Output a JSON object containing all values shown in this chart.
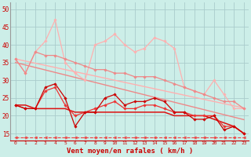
{
  "background_color": "#cceee8",
  "grid_color": "#aacccc",
  "xlabel": "Vent moyen/en rafales ( km/h )",
  "xlabel_color": "#cc0000",
  "ylabel_color": "#cc0000",
  "xlim": [
    -0.5,
    23.5
  ],
  "ylim": [
    13,
    52
  ],
  "yticks": [
    15,
    20,
    25,
    30,
    35,
    40,
    45,
    50
  ],
  "xticks": [
    0,
    1,
    2,
    3,
    4,
    5,
    6,
    7,
    8,
    9,
    10,
    11,
    12,
    13,
    14,
    15,
    16,
    17,
    18,
    19,
    20,
    21,
    22,
    23
  ],
  "series": [
    {
      "x": [
        0,
        1,
        2,
        3,
        4,
        5,
        6,
        7,
        8,
        9,
        10,
        11,
        12,
        13,
        14,
        15,
        16,
        17,
        18,
        19,
        20,
        21,
        22,
        23
      ],
      "y": [
        36,
        32,
        38,
        41,
        47,
        35,
        32,
        30,
        40,
        41,
        43,
        40,
        38,
        39,
        42,
        41,
        39,
        28,
        27,
        26,
        30,
        26,
        22,
        22
      ],
      "color": "#ffb0b0",
      "linewidth": 0.9,
      "marker": "D",
      "markersize": 1.8,
      "linestyle": "-",
      "zorder": 3
    },
    {
      "x": [
        0,
        1,
        2,
        3,
        4,
        5,
        6,
        7,
        8,
        9,
        10,
        11,
        12,
        13,
        14,
        15,
        16,
        17,
        18,
        19,
        20,
        21,
        22,
        23
      ],
      "y": [
        36,
        35.4,
        34.8,
        34.2,
        33.6,
        33,
        32.4,
        31.8,
        31.2,
        30.6,
        30,
        29.4,
        28.8,
        28.2,
        27.6,
        27,
        26.4,
        25.8,
        25.2,
        24.6,
        24,
        23.4,
        22.8,
        22.2
      ],
      "color": "#ffb0b0",
      "linewidth": 1.0,
      "marker": null,
      "markersize": 0,
      "linestyle": "-",
      "zorder": 2
    },
    {
      "x": [
        0,
        1,
        2,
        3,
        4,
        5,
        6,
        7,
        8,
        9,
        10,
        11,
        12,
        13,
        14,
        15,
        16,
        17,
        18,
        19,
        20,
        21,
        22,
        23
      ],
      "y": [
        36,
        32,
        38,
        37,
        37,
        36,
        35,
        34,
        33,
        33,
        32,
        32,
        31,
        31,
        31,
        30,
        29,
        28,
        27,
        26,
        25,
        24,
        24,
        22
      ],
      "color": "#ee8888",
      "linewidth": 0.9,
      "marker": "D",
      "markersize": 1.8,
      "linestyle": "-",
      "zorder": 3
    },
    {
      "x": [
        0,
        1,
        2,
        3,
        4,
        5,
        6,
        7,
        8,
        9,
        10,
        11,
        12,
        13,
        14,
        15,
        16,
        17,
        18,
        19,
        20,
        21,
        22,
        23
      ],
      "y": [
        35,
        34.3,
        33.6,
        32.9,
        32.2,
        31.5,
        30.8,
        30.1,
        29.4,
        28.7,
        28,
        27.3,
        26.6,
        25.9,
        25.2,
        24.5,
        23.8,
        23.1,
        22.4,
        21.7,
        21,
        20.3,
        19.6,
        18.9
      ],
      "color": "#ee8888",
      "linewidth": 1.0,
      "marker": null,
      "markersize": 0,
      "linestyle": "-",
      "zorder": 2
    },
    {
      "x": [
        0,
        1,
        2,
        3,
        4,
        5,
        6,
        7,
        8,
        9,
        10,
        11,
        12,
        13,
        14,
        15,
        16,
        17,
        18,
        19,
        20,
        21,
        22,
        23
      ],
      "y": [
        23,
        22,
        22,
        28,
        29,
        25,
        17,
        21,
        21,
        25,
        26,
        23,
        24,
        24,
        25,
        24,
        21,
        21,
        19,
        19,
        20,
        16,
        17,
        15
      ],
      "color": "#cc0000",
      "linewidth": 0.9,
      "marker": "D",
      "markersize": 1.8,
      "linestyle": "-",
      "zorder": 5
    },
    {
      "x": [
        0,
        1,
        2,
        3,
        4,
        5,
        6,
        7,
        8,
        9,
        10,
        11,
        12,
        13,
        14,
        15,
        16,
        17,
        18,
        19,
        20,
        21,
        22,
        23
      ],
      "y": [
        23,
        22,
        22,
        27,
        28,
        23,
        20,
        21,
        22,
        23,
        24,
        22,
        22,
        23,
        23,
        22,
        21,
        21,
        20,
        20,
        20,
        17,
        17,
        15
      ],
      "color": "#ee3333",
      "linewidth": 0.9,
      "marker": "D",
      "markersize": 1.8,
      "linestyle": "-",
      "zorder": 4
    },
    {
      "x": [
        0,
        1,
        2,
        3,
        4,
        5,
        6,
        7,
        8,
        9,
        10,
        11,
        12,
        13,
        14,
        15,
        16,
        17,
        18,
        19,
        20,
        21,
        22,
        23
      ],
      "y": [
        23,
        23,
        22,
        22,
        22,
        22,
        21,
        21,
        21,
        21,
        21,
        21,
        21,
        21,
        21,
        21,
        20,
        20,
        20,
        20,
        19,
        18,
        17,
        15
      ],
      "color": "#dd1111",
      "linewidth": 1.1,
      "marker": null,
      "markersize": 0,
      "linestyle": "-",
      "zorder": 3
    },
    {
      "x": [
        0,
        1,
        2,
        3,
        4,
        5,
        6,
        7,
        8,
        9,
        10,
        11,
        12,
        13,
        14,
        15,
        16,
        17,
        18,
        19,
        20,
        21,
        22,
        23
      ],
      "y": [
        14,
        14,
        14,
        14,
        14,
        14,
        14,
        14,
        14,
        14,
        14,
        14,
        14,
        14,
        14,
        14,
        14,
        14,
        14,
        14,
        14,
        14,
        14,
        14
      ],
      "color": "#ee4444",
      "linewidth": 0.8,
      "marker": "<",
      "markersize": 2.5,
      "linestyle": "--",
      "zorder": 2
    }
  ]
}
